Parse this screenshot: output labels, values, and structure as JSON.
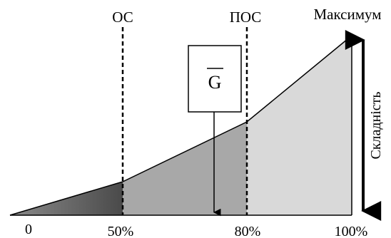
{
  "labels": {
    "os": "ОС",
    "pos": "ПОС",
    "max": "Максимум",
    "complexity": "Складність",
    "g_symbol": "G"
  },
  "axis": {
    "ticks": [
      "0",
      "50%",
      "80%",
      "100%"
    ]
  },
  "colors": {
    "region_0_50": "#5a5a5a",
    "region_50_80": "#a8a8a8",
    "region_80_100": "#d9d9d9",
    "line": "#000000"
  }
}
